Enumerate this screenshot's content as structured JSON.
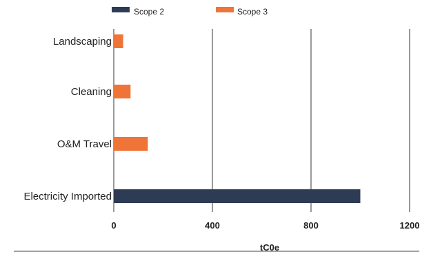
{
  "chart_data": {
    "type": "bar",
    "orientation": "horizontal",
    "categories": [
      "Landscaping",
      "Cleaning",
      "O&M Travel",
      "Electricity Imported"
    ],
    "series": [
      {
        "name": "Scope 2",
        "values": [
          0,
          0,
          0,
          1000
        ],
        "color": "#2e3b55"
      },
      {
        "name": "Scope 3",
        "values": [
          38,
          68,
          138,
          0
        ],
        "color": "#ee7537"
      }
    ],
    "xlabel": "tC0e",
    "xlim": [
      0,
      1200
    ],
    "xticks": [
      0,
      400,
      800,
      1200
    ],
    "grid": "vertical",
    "legend": "top"
  }
}
